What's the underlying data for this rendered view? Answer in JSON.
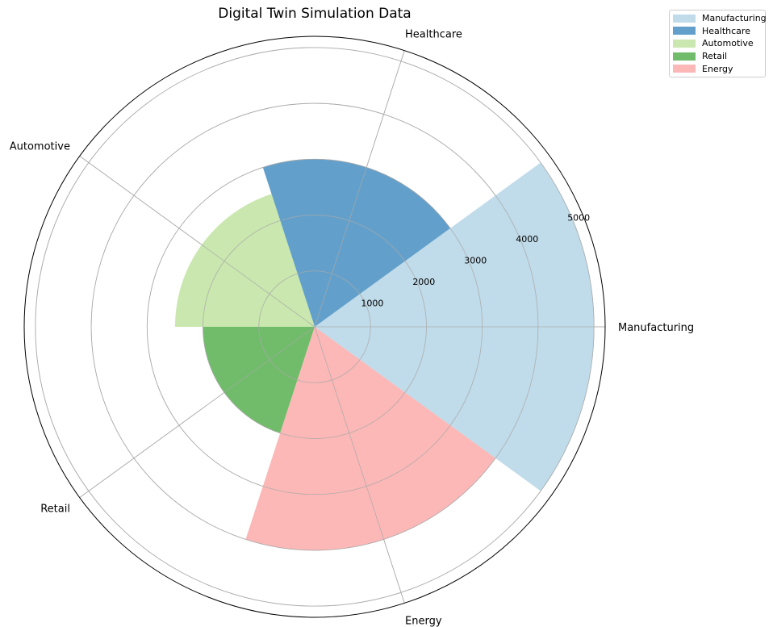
{
  "chart_data": {
    "type": "polar-bar",
    "title": "Digital Twin Simulation Data",
    "categories": [
      "Manufacturing",
      "Healthcare",
      "Automotive",
      "Retail",
      "Energy"
    ],
    "values": [
      5000,
      3000,
      2500,
      2000,
      4000
    ],
    "colors": [
      "#c0dbe9",
      "#62a0cb",
      "#c9e7ae",
      "#71bc6b",
      "#fbb8b7"
    ],
    "radial_ticks": [
      1000,
      2000,
      3000,
      4000,
      5000
    ],
    "rlim": [
      0,
      5200
    ],
    "grid": true,
    "legend": {
      "position": "top-right",
      "entries": [
        "Manufacturing",
        "Healthcare",
        "Automotive",
        "Retail",
        "Energy"
      ]
    }
  }
}
